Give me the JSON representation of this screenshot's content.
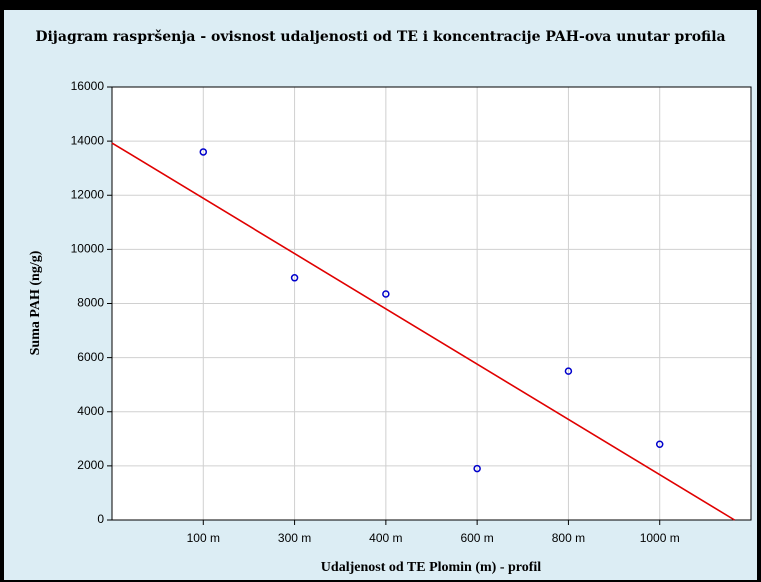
{
  "chart_data": {
    "type": "scatter",
    "title": "Dijagram raspršenja - ovisnost udaljenosti od TE i koncentracije PAH-ova unutar profila",
    "xlabel": "Udaljenost od TE Plomin (m) - profil",
    "ylabel": "Suma PAH (ng/g)",
    "x": [
      1,
      2,
      3,
      4,
      5,
      6
    ],
    "values": [
      13600,
      8950,
      8350,
      1900,
      5500,
      2800
    ],
    "color": "#0000cc",
    "trendline": {
      "x": [
        0,
        6.82
      ],
      "values": [
        13930,
        0
      ],
      "color": "#e00000"
    },
    "xlim": [
      0,
      7
    ],
    "xticks": [
      {
        "value": 1,
        "label": "100 m"
      },
      {
        "value": 2,
        "label": "300 m"
      },
      {
        "value": 3,
        "label": "400 m"
      },
      {
        "value": 4,
        "label": "600 m"
      },
      {
        "value": 5,
        "label": "800 m"
      },
      {
        "value": 6,
        "label": "1000 m"
      }
    ],
    "ylim": [
      0,
      16000
    ],
    "yticks": [
      0,
      2000,
      4000,
      6000,
      8000,
      10000,
      12000,
      14000,
      16000
    ],
    "grid": true
  }
}
